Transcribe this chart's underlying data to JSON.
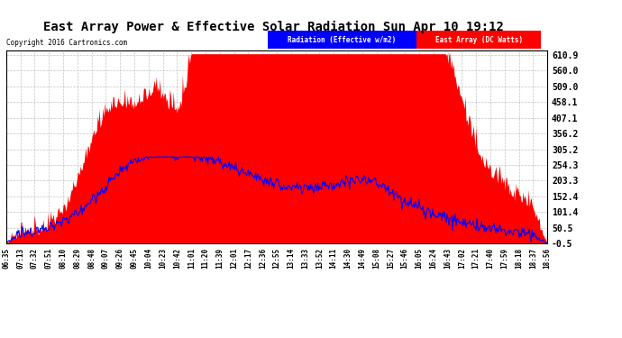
{
  "title": "East Array Power & Effective Solar Radiation Sun Apr 10 19:12",
  "copyright": "Copyright 2016 Cartronics.com",
  "legend_labels": [
    "Radiation (Effective w/m2)",
    "East Array (DC Watts)"
  ],
  "y_ticks": [
    -0.5,
    50.5,
    101.4,
    152.4,
    203.3,
    254.3,
    305.2,
    356.2,
    407.1,
    458.1,
    509.0,
    560.0,
    610.9
  ],
  "y_min": -0.5,
  "y_max": 625.0,
  "background_color": "#ffffff",
  "plot_bg": "#ffffff",
  "grid_color": "#aaaaaa",
  "title_fontsize": 11,
  "x_labels": [
    "06:35",
    "07:13",
    "07:32",
    "07:51",
    "08:10",
    "08:29",
    "08:48",
    "09:07",
    "09:26",
    "09:45",
    "10:04",
    "10:23",
    "10:42",
    "11:01",
    "11:20",
    "11:39",
    "12:01",
    "12:17",
    "12:36",
    "12:55",
    "13:14",
    "13:33",
    "13:52",
    "14:11",
    "14:30",
    "14:49",
    "15:08",
    "15:27",
    "15:46",
    "16:05",
    "16:24",
    "16:43",
    "17:02",
    "17:21",
    "17:40",
    "17:59",
    "18:18",
    "18:37",
    "18:56"
  ]
}
